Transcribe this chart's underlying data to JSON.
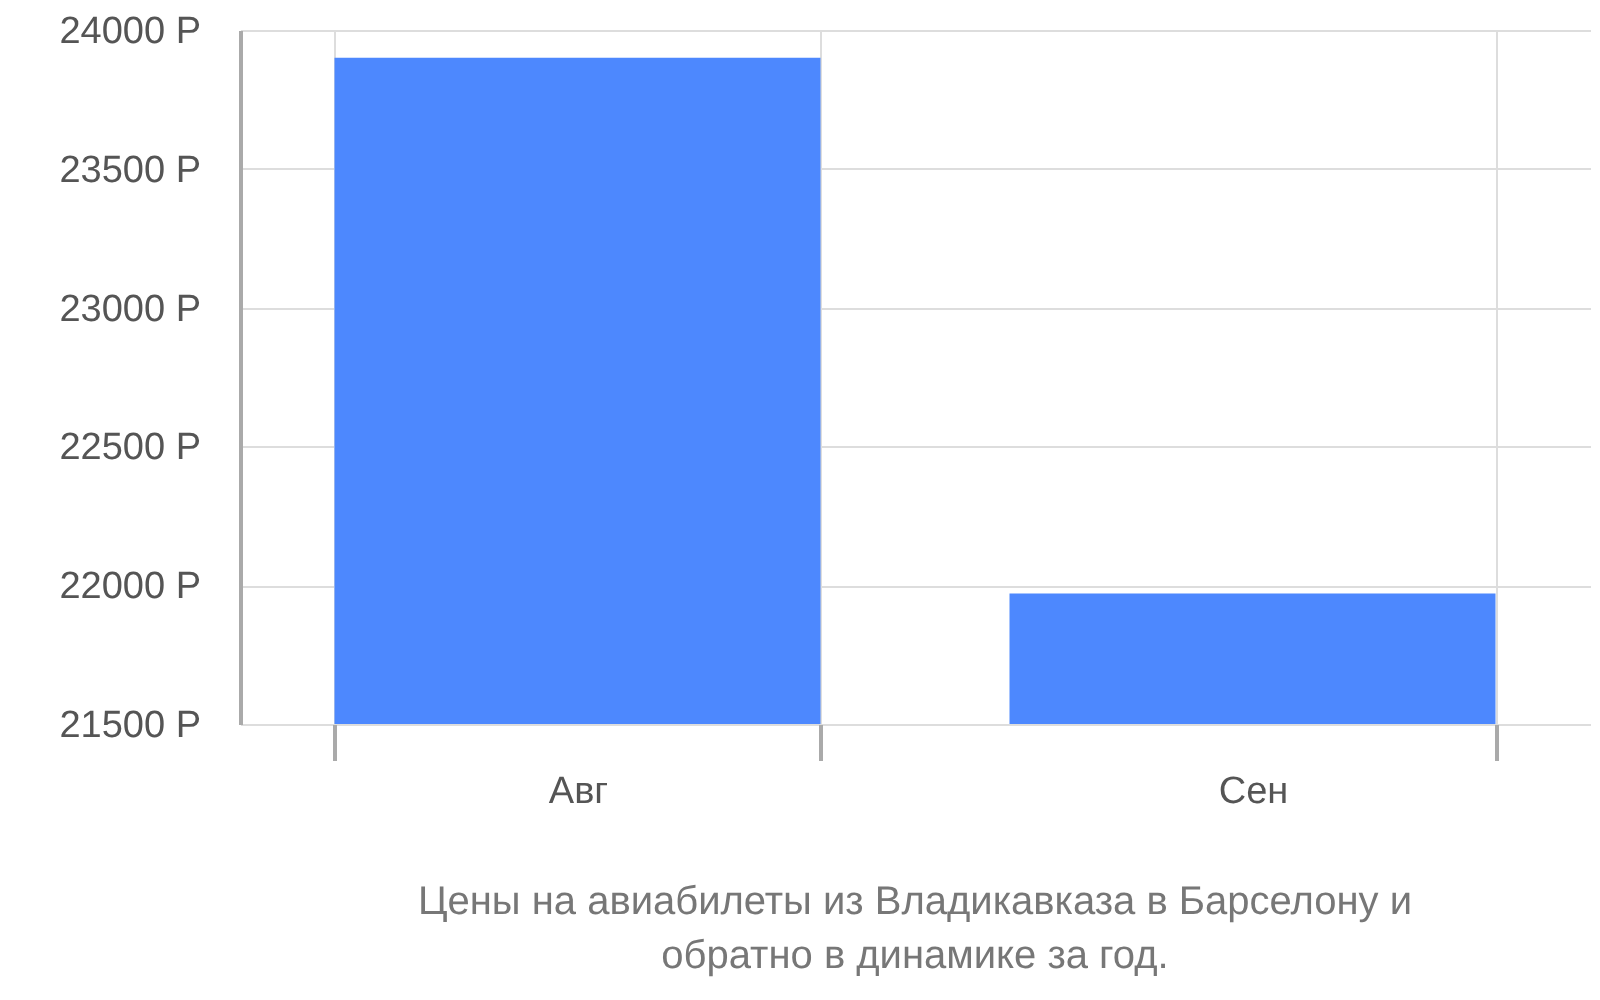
{
  "chart_data": {
    "type": "bar",
    "title": "Цены на авиабилеты из Владикавказа в Барселону и обратно в динамике за год.",
    "categories": [
      "Авг",
      "Сен"
    ],
    "values": [
      23900,
      21970
    ],
    "color": "#4d88fe",
    "ylim": [
      21500,
      24000
    ],
    "yticks": [
      {
        "value": 21500,
        "label": "21500 Р"
      },
      {
        "value": 22000,
        "label": "22000 Р"
      },
      {
        "value": 22500,
        "label": "22500 Р"
      },
      {
        "value": 23000,
        "label": "23000 Р"
      },
      {
        "value": 23500,
        "label": "23500 Р"
      },
      {
        "value": 24000,
        "label": "24000 Р"
      }
    ],
    "grid": true
  }
}
